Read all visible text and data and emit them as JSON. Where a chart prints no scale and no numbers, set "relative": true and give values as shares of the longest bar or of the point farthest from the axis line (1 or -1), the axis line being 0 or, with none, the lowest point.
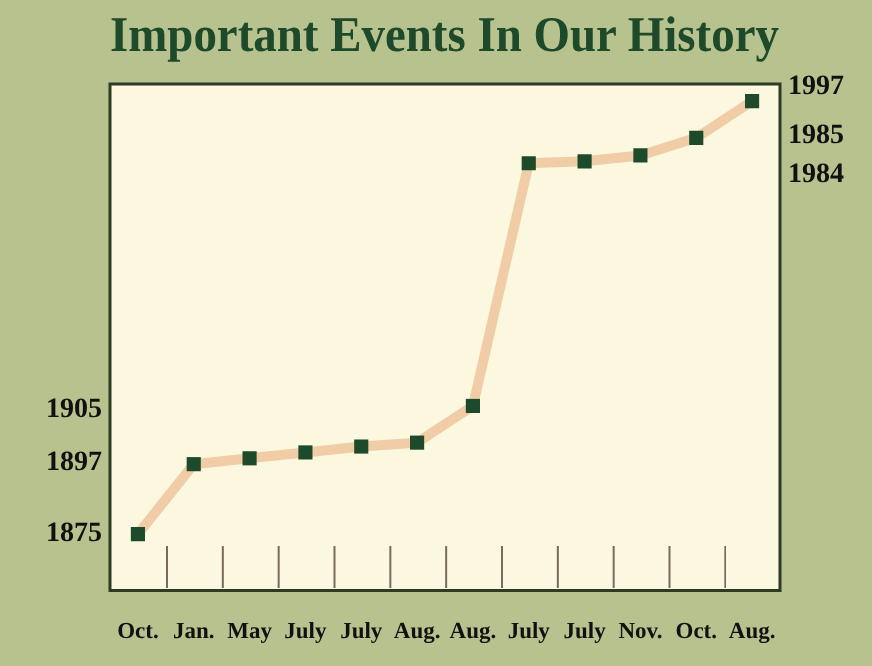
{
  "chart_data": {
    "type": "line",
    "title": "Important Events In Our History",
    "relative": true,
    "categories": [
      "Oct.",
      "Jan.",
      "May",
      "July",
      "July",
      "Aug.",
      "Aug.",
      "July",
      "July",
      "Nov.",
      "Oct.",
      "Aug."
    ],
    "series": [
      {
        "color": "#f0cda6",
        "values": [
          0.115,
          0.258,
          0.27,
          0.282,
          0.294,
          0.302,
          0.377,
          0.873,
          0.877,
          0.889,
          0.925,
          1
        ]
      }
    ],
    "annotations": [
      "1875",
      "1897",
      "1905",
      "1984",
      "1985",
      "1997"
    ],
    "marker": "square",
    "legend": false
  }
}
